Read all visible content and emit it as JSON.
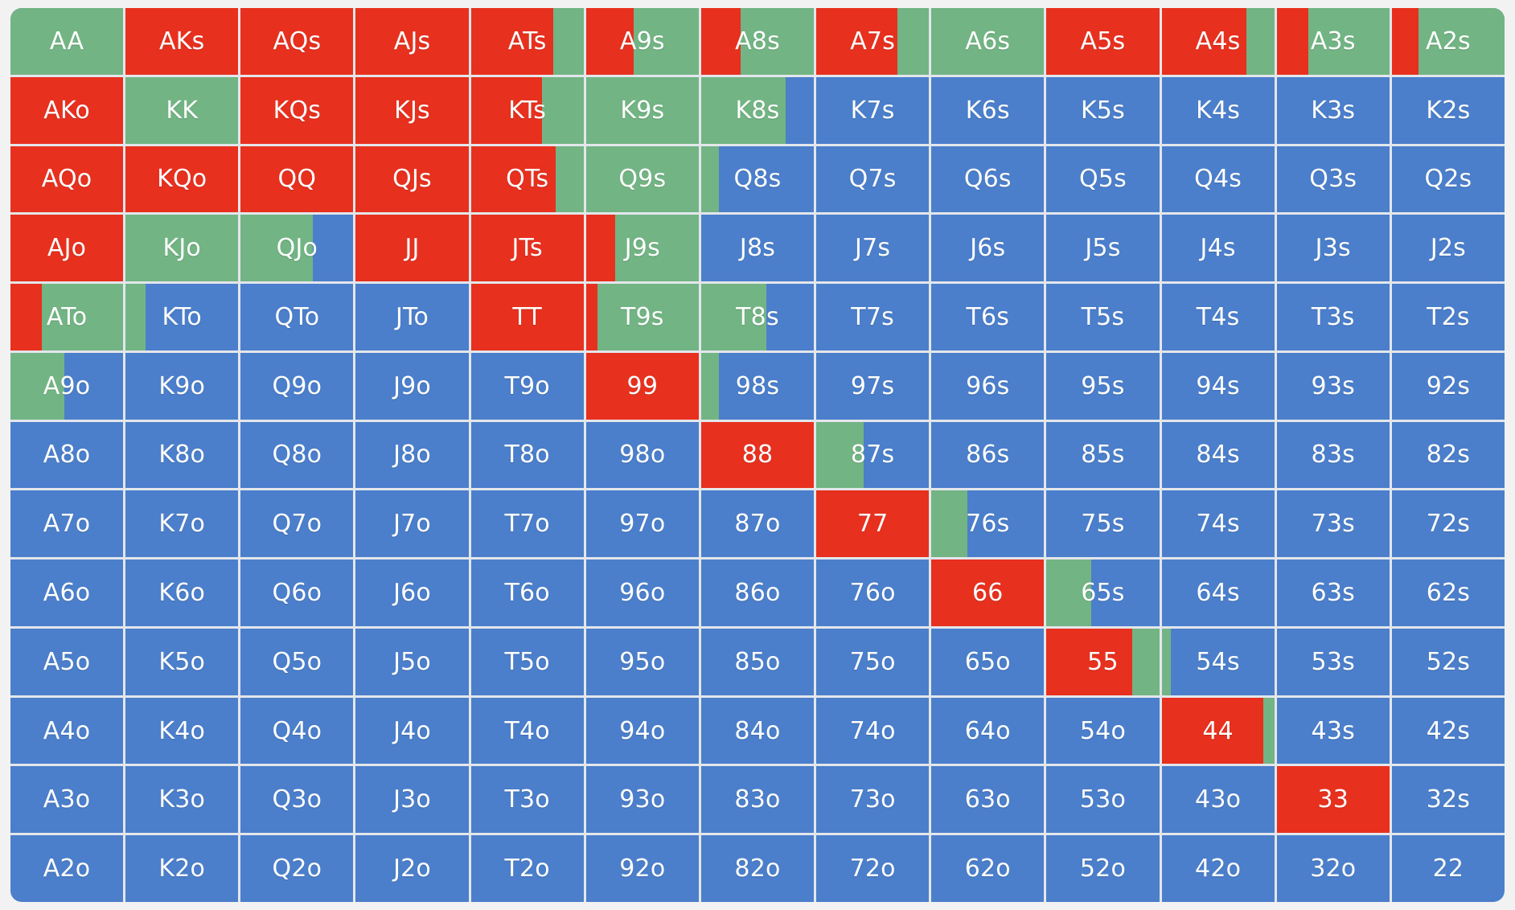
{
  "chart_data": {
    "type": "heatmap",
    "colors": {
      "raise": "#e8301f",
      "call": "#72b483",
      "fold": "#4b7fcb"
    },
    "rows": [
      [
        {
          "label": "AA",
          "raise": 0,
          "call": 1
        },
        {
          "label": "AKs",
          "raise": 1,
          "call": 0
        },
        {
          "label": "AQs",
          "raise": 1,
          "call": 0
        },
        {
          "label": "AJs",
          "raise": 1,
          "call": 0
        },
        {
          "label": "ATs",
          "raise": 0.73,
          "call": 0.27
        },
        {
          "label": "A9s",
          "raise": 0.42,
          "call": 0.58
        },
        {
          "label": "A8s",
          "raise": 0.35,
          "call": 0.65
        },
        {
          "label": "A7s",
          "raise": 0.72,
          "call": 0.28
        },
        {
          "label": "A6s",
          "raise": 0,
          "call": 1
        },
        {
          "label": "A5s",
          "raise": 1,
          "call": 0
        },
        {
          "label": "A4s",
          "raise": 0.75,
          "call": 0.25
        },
        {
          "label": "A3s",
          "raise": 0.28,
          "call": 0.72
        },
        {
          "label": "A2s",
          "raise": 0.24,
          "call": 0.76
        }
      ],
      [
        {
          "label": "AKo",
          "raise": 1,
          "call": 0
        },
        {
          "label": "KK",
          "raise": 0,
          "call": 1
        },
        {
          "label": "KQs",
          "raise": 1,
          "call": 0
        },
        {
          "label": "KJs",
          "raise": 1,
          "call": 0
        },
        {
          "label": "KTs",
          "raise": 0.63,
          "call": 0.37
        },
        {
          "label": "K9s",
          "raise": 0,
          "call": 1
        },
        {
          "label": "K8s",
          "raise": 0,
          "call": 0.75
        },
        {
          "label": "K7s",
          "raise": 0,
          "call": 0
        },
        {
          "label": "K6s",
          "raise": 0,
          "call": 0
        },
        {
          "label": "K5s",
          "raise": 0,
          "call": 0
        },
        {
          "label": "K4s",
          "raise": 0,
          "call": 0
        },
        {
          "label": "K3s",
          "raise": 0,
          "call": 0
        },
        {
          "label": "K2s",
          "raise": 0,
          "call": 0
        }
      ],
      [
        {
          "label": "AQo",
          "raise": 1,
          "call": 0
        },
        {
          "label": "KQo",
          "raise": 1,
          "call": 0
        },
        {
          "label": "QQ",
          "raise": 1,
          "call": 0
        },
        {
          "label": "QJs",
          "raise": 1,
          "call": 0
        },
        {
          "label": "QTs",
          "raise": 0.75,
          "call": 0.25
        },
        {
          "label": "Q9s",
          "raise": 0,
          "call": 1
        },
        {
          "label": "Q8s",
          "raise": 0,
          "call": 0.16
        },
        {
          "label": "Q7s",
          "raise": 0,
          "call": 0
        },
        {
          "label": "Q6s",
          "raise": 0,
          "call": 0
        },
        {
          "label": "Q5s",
          "raise": 0,
          "call": 0
        },
        {
          "label": "Q4s",
          "raise": 0,
          "call": 0
        },
        {
          "label": "Q3s",
          "raise": 0,
          "call": 0
        },
        {
          "label": "Q2s",
          "raise": 0,
          "call": 0
        }
      ],
      [
        {
          "label": "AJo",
          "raise": 1,
          "call": 0
        },
        {
          "label": "KJo",
          "raise": 0,
          "call": 1
        },
        {
          "label": "QJo",
          "raise": 0,
          "call": 0.64
        },
        {
          "label": "JJ",
          "raise": 1,
          "call": 0
        },
        {
          "label": "JTs",
          "raise": 1,
          "call": 0
        },
        {
          "label": "J9s",
          "raise": 0.26,
          "call": 0.74
        },
        {
          "label": "J8s",
          "raise": 0,
          "call": 0
        },
        {
          "label": "J7s",
          "raise": 0,
          "call": 0
        },
        {
          "label": "J6s",
          "raise": 0,
          "call": 0
        },
        {
          "label": "J5s",
          "raise": 0,
          "call": 0
        },
        {
          "label": "J4s",
          "raise": 0,
          "call": 0
        },
        {
          "label": "J3s",
          "raise": 0,
          "call": 0
        },
        {
          "label": "J2s",
          "raise": 0,
          "call": 0
        }
      ],
      [
        {
          "label": "ATo",
          "raise": 0.28,
          "call": 0.72
        },
        {
          "label": "KTo",
          "raise": 0,
          "call": 0.18
        },
        {
          "label": "QTo",
          "raise": 0,
          "call": 0
        },
        {
          "label": "JTo",
          "raise": 0,
          "call": 0
        },
        {
          "label": "TT",
          "raise": 1,
          "call": 0
        },
        {
          "label": "T9s",
          "raise": 0.1,
          "call": 0.9
        },
        {
          "label": "T8s",
          "raise": 0,
          "call": 0.58
        },
        {
          "label": "T7s",
          "raise": 0,
          "call": 0
        },
        {
          "label": "T6s",
          "raise": 0,
          "call": 0
        },
        {
          "label": "T5s",
          "raise": 0,
          "call": 0
        },
        {
          "label": "T4s",
          "raise": 0,
          "call": 0
        },
        {
          "label": "T3s",
          "raise": 0,
          "call": 0
        },
        {
          "label": "T2s",
          "raise": 0,
          "call": 0
        }
      ],
      [
        {
          "label": "A9o",
          "raise": 0,
          "call": 0.48
        },
        {
          "label": "K9o",
          "raise": 0,
          "call": 0
        },
        {
          "label": "Q9o",
          "raise": 0,
          "call": 0
        },
        {
          "label": "J9o",
          "raise": 0,
          "call": 0
        },
        {
          "label": "T9o",
          "raise": 0,
          "call": 0
        },
        {
          "label": "99",
          "raise": 1,
          "call": 0
        },
        {
          "label": "98s",
          "raise": 0,
          "call": 0.16
        },
        {
          "label": "97s",
          "raise": 0,
          "call": 0
        },
        {
          "label": "96s",
          "raise": 0,
          "call": 0
        },
        {
          "label": "95s",
          "raise": 0,
          "call": 0
        },
        {
          "label": "94s",
          "raise": 0,
          "call": 0
        },
        {
          "label": "93s",
          "raise": 0,
          "call": 0
        },
        {
          "label": "92s",
          "raise": 0,
          "call": 0
        }
      ],
      [
        {
          "label": "A8o",
          "raise": 0,
          "call": 0
        },
        {
          "label": "K8o",
          "raise": 0,
          "call": 0
        },
        {
          "label": "Q8o",
          "raise": 0,
          "call": 0
        },
        {
          "label": "J8o",
          "raise": 0,
          "call": 0
        },
        {
          "label": "T8o",
          "raise": 0,
          "call": 0
        },
        {
          "label": "98o",
          "raise": 0,
          "call": 0
        },
        {
          "label": "88",
          "raise": 1,
          "call": 0
        },
        {
          "label": "87s",
          "raise": 0,
          "call": 0.42
        },
        {
          "label": "86s",
          "raise": 0,
          "call": 0
        },
        {
          "label": "85s",
          "raise": 0,
          "call": 0
        },
        {
          "label": "84s",
          "raise": 0,
          "call": 0
        },
        {
          "label": "83s",
          "raise": 0,
          "call": 0
        },
        {
          "label": "82s",
          "raise": 0,
          "call": 0
        }
      ],
      [
        {
          "label": "A7o",
          "raise": 0,
          "call": 0
        },
        {
          "label": "K7o",
          "raise": 0,
          "call": 0
        },
        {
          "label": "Q7o",
          "raise": 0,
          "call": 0
        },
        {
          "label": "J7o",
          "raise": 0,
          "call": 0
        },
        {
          "label": "T7o",
          "raise": 0,
          "call": 0
        },
        {
          "label": "97o",
          "raise": 0,
          "call": 0
        },
        {
          "label": "87o",
          "raise": 0,
          "call": 0
        },
        {
          "label": "77",
          "raise": 1,
          "call": 0
        },
        {
          "label": "76s",
          "raise": 0,
          "call": 0.32
        },
        {
          "label": "75s",
          "raise": 0,
          "call": 0
        },
        {
          "label": "74s",
          "raise": 0,
          "call": 0
        },
        {
          "label": "73s",
          "raise": 0,
          "call": 0
        },
        {
          "label": "72s",
          "raise": 0,
          "call": 0
        }
      ],
      [
        {
          "label": "A6o",
          "raise": 0,
          "call": 0
        },
        {
          "label": "K6o",
          "raise": 0,
          "call": 0
        },
        {
          "label": "Q6o",
          "raise": 0,
          "call": 0
        },
        {
          "label": "J6o",
          "raise": 0,
          "call": 0
        },
        {
          "label": "T6o",
          "raise": 0,
          "call": 0
        },
        {
          "label": "96o",
          "raise": 0,
          "call": 0
        },
        {
          "label": "86o",
          "raise": 0,
          "call": 0
        },
        {
          "label": "76o",
          "raise": 0,
          "call": 0
        },
        {
          "label": "66",
          "raise": 1,
          "call": 0
        },
        {
          "label": "65s",
          "raise": 0,
          "call": 0.4
        },
        {
          "label": "64s",
          "raise": 0,
          "call": 0
        },
        {
          "label": "63s",
          "raise": 0,
          "call": 0
        },
        {
          "label": "62s",
          "raise": 0,
          "call": 0
        }
      ],
      [
        {
          "label": "A5o",
          "raise": 0,
          "call": 0
        },
        {
          "label": "K5o",
          "raise": 0,
          "call": 0
        },
        {
          "label": "Q5o",
          "raise": 0,
          "call": 0
        },
        {
          "label": "J5o",
          "raise": 0,
          "call": 0
        },
        {
          "label": "T5o",
          "raise": 0,
          "call": 0
        },
        {
          "label": "95o",
          "raise": 0,
          "call": 0
        },
        {
          "label": "85o",
          "raise": 0,
          "call": 0
        },
        {
          "label": "75o",
          "raise": 0,
          "call": 0
        },
        {
          "label": "65o",
          "raise": 0,
          "call": 0
        },
        {
          "label": "55",
          "raise": 0.76,
          "call": 0.24
        },
        {
          "label": "54s",
          "raise": 0,
          "call": 0.08
        },
        {
          "label": "53s",
          "raise": 0,
          "call": 0
        },
        {
          "label": "52s",
          "raise": 0,
          "call": 0
        }
      ],
      [
        {
          "label": "A4o",
          "raise": 0,
          "call": 0
        },
        {
          "label": "K4o",
          "raise": 0,
          "call": 0
        },
        {
          "label": "Q4o",
          "raise": 0,
          "call": 0
        },
        {
          "label": "J4o",
          "raise": 0,
          "call": 0
        },
        {
          "label": "T4o",
          "raise": 0,
          "call": 0
        },
        {
          "label": "94o",
          "raise": 0,
          "call": 0
        },
        {
          "label": "84o",
          "raise": 0,
          "call": 0
        },
        {
          "label": "74o",
          "raise": 0,
          "call": 0
        },
        {
          "label": "64o",
          "raise": 0,
          "call": 0
        },
        {
          "label": "54o",
          "raise": 0,
          "call": 0
        },
        {
          "label": "44",
          "raise": 0.9,
          "call": 0.1
        },
        {
          "label": "43s",
          "raise": 0,
          "call": 0
        },
        {
          "label": "42s",
          "raise": 0,
          "call": 0
        }
      ],
      [
        {
          "label": "A3o",
          "raise": 0,
          "call": 0
        },
        {
          "label": "K3o",
          "raise": 0,
          "call": 0
        },
        {
          "label": "Q3o",
          "raise": 0,
          "call": 0
        },
        {
          "label": "J3o",
          "raise": 0,
          "call": 0
        },
        {
          "label": "T3o",
          "raise": 0,
          "call": 0
        },
        {
          "label": "93o",
          "raise": 0,
          "call": 0
        },
        {
          "label": "83o",
          "raise": 0,
          "call": 0
        },
        {
          "label": "73o",
          "raise": 0,
          "call": 0
        },
        {
          "label": "63o",
          "raise": 0,
          "call": 0
        },
        {
          "label": "53o",
          "raise": 0,
          "call": 0
        },
        {
          "label": "43o",
          "raise": 0,
          "call": 0
        },
        {
          "label": "33",
          "raise": 1,
          "call": 0
        },
        {
          "label": "32s",
          "raise": 0,
          "call": 0
        }
      ],
      [
        {
          "label": "A2o",
          "raise": 0,
          "call": 0
        },
        {
          "label": "K2o",
          "raise": 0,
          "call": 0
        },
        {
          "label": "Q2o",
          "raise": 0,
          "call": 0
        },
        {
          "label": "J2o",
          "raise": 0,
          "call": 0
        },
        {
          "label": "T2o",
          "raise": 0,
          "call": 0
        },
        {
          "label": "92o",
          "raise": 0,
          "call": 0
        },
        {
          "label": "82o",
          "raise": 0,
          "call": 0
        },
        {
          "label": "72o",
          "raise": 0,
          "call": 0
        },
        {
          "label": "62o",
          "raise": 0,
          "call": 0
        },
        {
          "label": "52o",
          "raise": 0,
          "call": 0
        },
        {
          "label": "42o",
          "raise": 0,
          "call": 0
        },
        {
          "label": "32o",
          "raise": 0,
          "call": 0
        },
        {
          "label": "22",
          "raise": 0,
          "call": 0
        }
      ]
    ]
  }
}
